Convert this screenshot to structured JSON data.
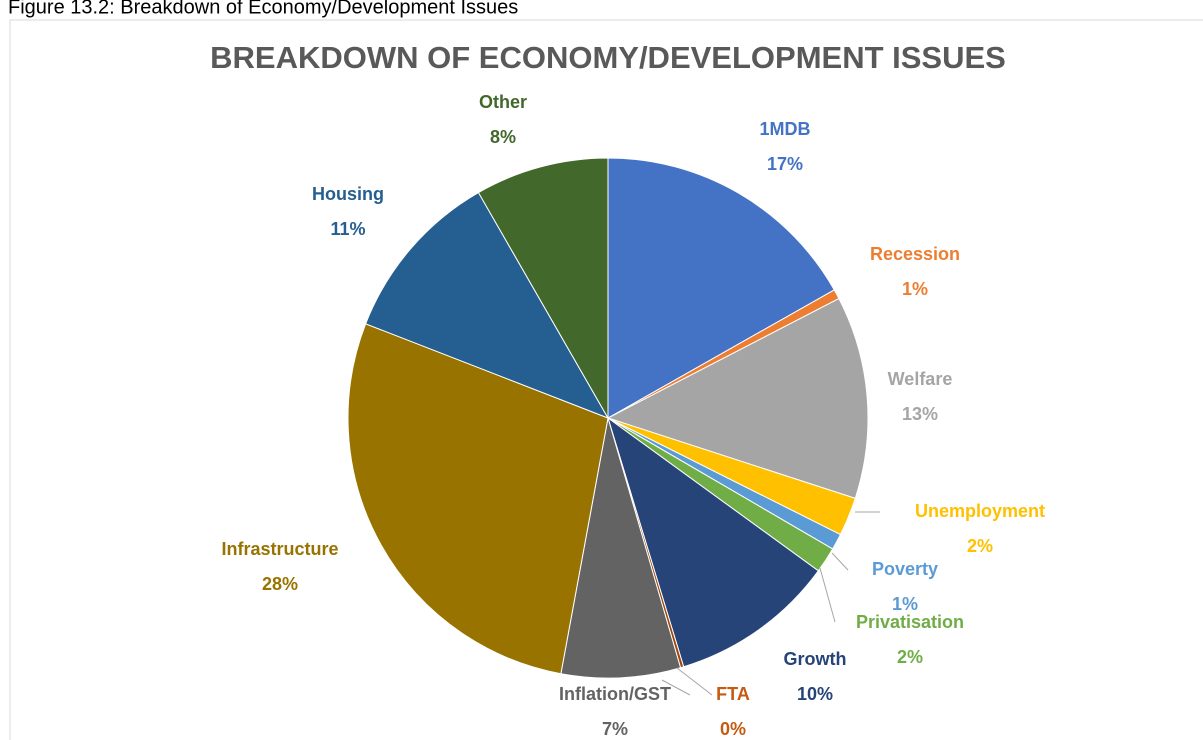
{
  "caption": "Figure 13.2: Breakdown of Economy/Development Issues",
  "chart_data": {
    "type": "pie",
    "title": "BREAKDOWN OF ECONOMY/DEVELOPMENT ISSUES",
    "categories": [
      "1MDB",
      "Recession",
      "Welfare",
      "Unemployment",
      "Poverty",
      "Privatisation",
      "Growth",
      "FTA",
      "Inflation/GST",
      "Infrastructure",
      "Housing",
      "Other"
    ],
    "values": [
      16.8,
      0.6,
      12.6,
      2.4,
      1.0,
      1.6,
      10.3,
      0.2,
      7.4,
      28.0,
      10.8,
      8.3
    ],
    "value_labels": [
      "17%",
      "1%",
      "13%",
      "2%",
      "1%",
      "2%",
      "10%",
      "0%",
      "7%",
      "28%",
      "11%",
      "8%"
    ],
    "colors": [
      "#4472c4",
      "#ed7d31",
      "#a5a5a5",
      "#ffc000",
      "#5b9bd5",
      "#70ad47",
      "#264478",
      "#9e480e",
      "#636363",
      "#997300",
      "#255e91",
      "#43682b"
    ]
  }
}
